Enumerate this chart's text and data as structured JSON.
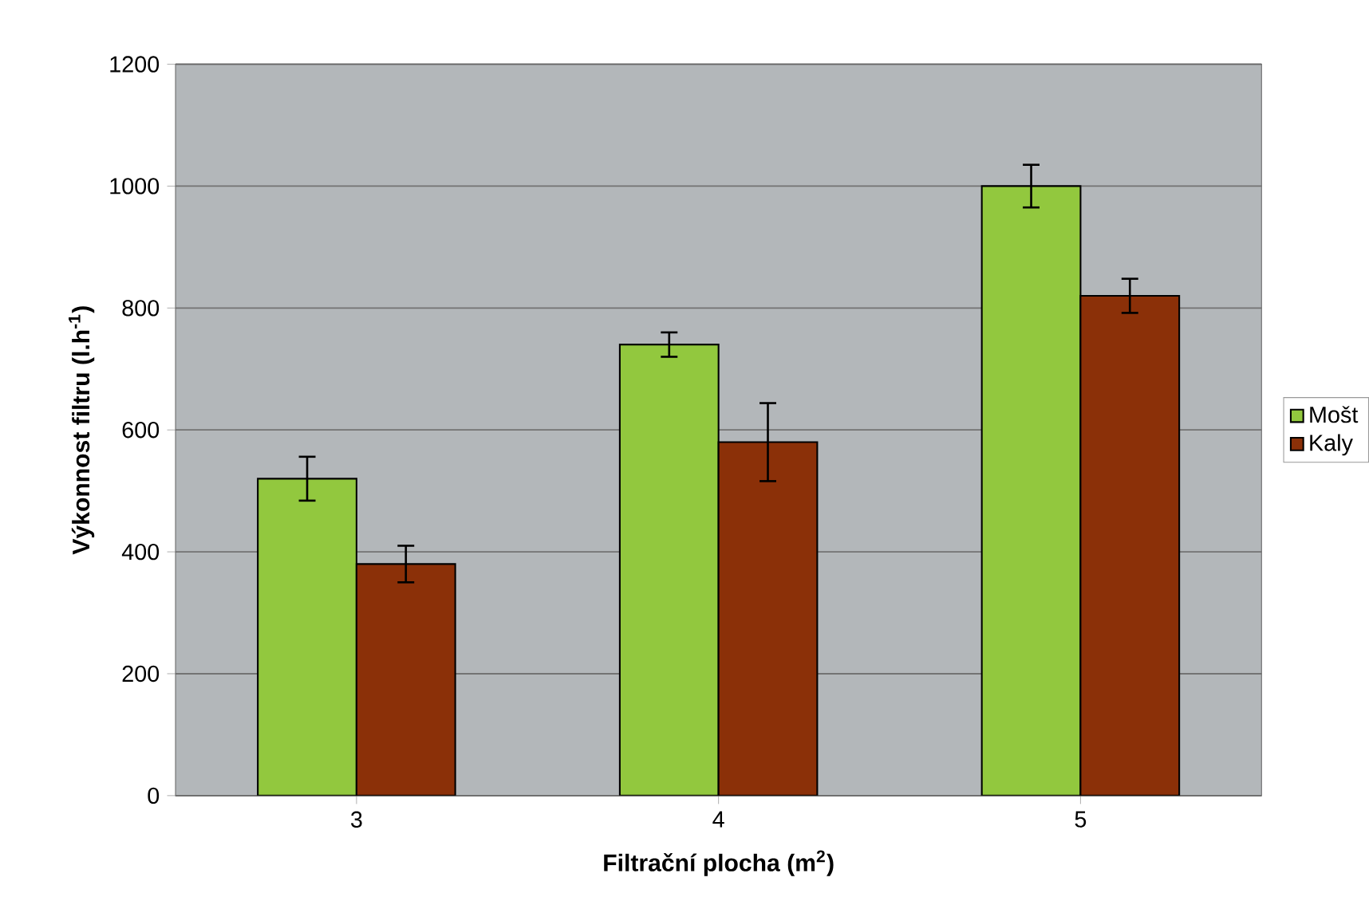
{
  "chart_data": {
    "type": "bar",
    "xlabel": "Filtrační plocha (m$^{2}$)",
    "ylabel": "Výkonnost filtru (l.h$^{-1}$)",
    "categories": [
      "3",
      "4",
      "5"
    ],
    "series": [
      {
        "name": "Mošt",
        "color": "#92c83e",
        "values": [
          520,
          740,
          1000
        ],
        "errors": [
          36,
          20,
          35
        ]
      },
      {
        "name": "Kaly",
        "color": "#8b3008",
        "values": [
          380,
          580,
          820
        ],
        "errors": [
          30,
          64,
          28
        ]
      }
    ],
    "ylim": [
      0,
      1200
    ],
    "yticks": [
      0,
      200,
      400,
      600,
      800,
      1000,
      1200
    ],
    "grid": "y",
    "legend": "right"
  }
}
